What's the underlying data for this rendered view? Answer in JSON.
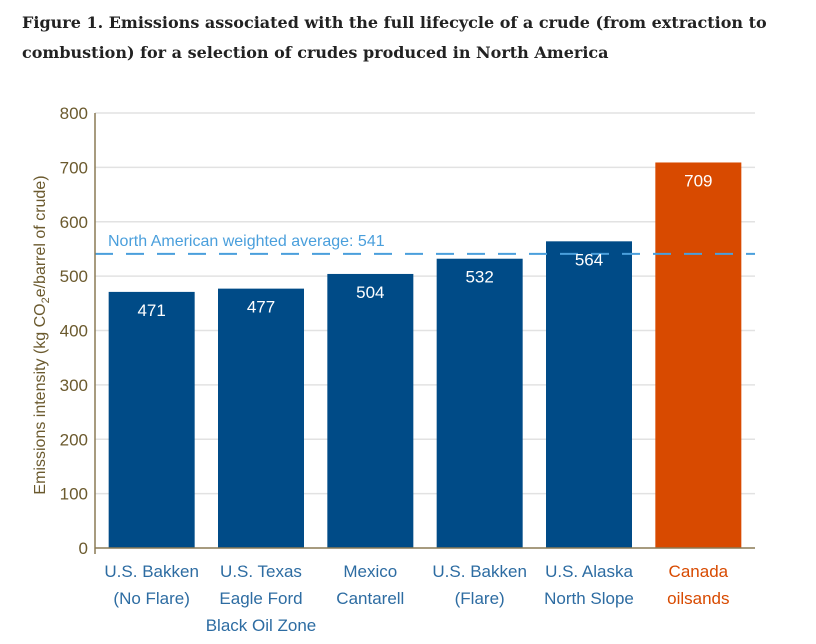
{
  "chart_data": {
    "type": "bar",
    "title": "Figure 1. Emissions associated with the full lifecycle of a crude (from extraction to combustion) for a selection of crudes produced in North America",
    "ylabel_parts": [
      "Emissions intensity (kg CO",
      "2",
      "e/barrel of crude)"
    ],
    "xlabel": "",
    "ylim": [
      0,
      800
    ],
    "yticks": [
      0,
      100,
      200,
      300,
      400,
      500,
      600,
      700,
      800
    ],
    "grid": true,
    "categories": [
      [
        "U.S. Bakken",
        "(No Flare)"
      ],
      [
        "U.S. Texas",
        "Eagle Ford",
        "Black Oil Zone"
      ],
      [
        "Mexico",
        "Cantarell"
      ],
      [
        "U.S. Bakken",
        "(Flare)"
      ],
      [
        "U.S. Alaska",
        "North Slope"
      ],
      [
        "Canada",
        "oilsands"
      ]
    ],
    "values": [
      471,
      477,
      504,
      532,
      564,
      709
    ],
    "colors": [
      "#004b87",
      "#004b87",
      "#004b87",
      "#004b87",
      "#004b87",
      "#d84a00"
    ],
    "label_colors": [
      "#2d6ca2",
      "#2d6ca2",
      "#2d6ca2",
      "#2d6ca2",
      "#2d6ca2",
      "#d84a00"
    ],
    "reference_line": {
      "value": 541,
      "label": "North American weighted average: 541",
      "color": "#4a9fdc"
    }
  }
}
